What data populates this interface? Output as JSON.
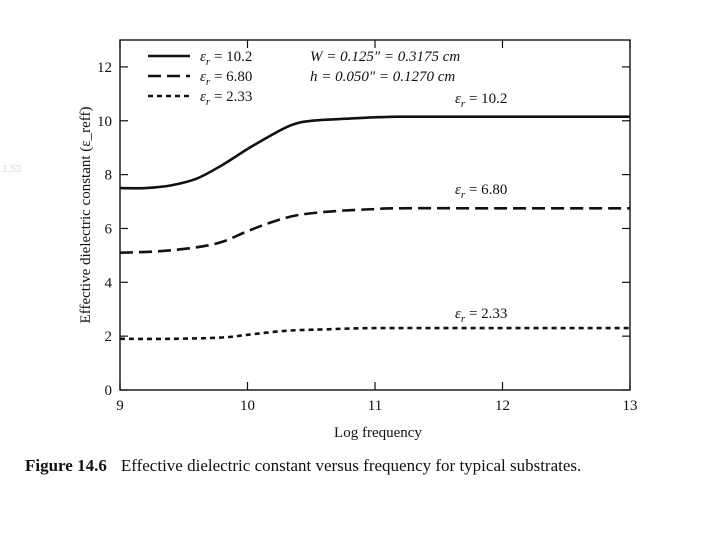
{
  "side_note": "1.53",
  "caption": {
    "label": "Figure 14.6",
    "text": "Effective dielectric constant versus frequency for typical substrates."
  },
  "chart_data": {
    "type": "line",
    "title": "",
    "xlabel": "Log frequency",
    "ylabel": "Effective dielectric constant (ε_reff)",
    "xlim": [
      9,
      13
    ],
    "ylim": [
      0,
      13
    ],
    "xticks": [
      9,
      10,
      11,
      12,
      13
    ],
    "yticks": [
      0,
      2,
      4,
      6,
      8,
      10,
      12
    ],
    "grid": false,
    "legend_position": "top-left",
    "legend_notes": [
      "W = 0.125″ = 0.3175 cm",
      "h = 0.050″ = 0.1270 cm"
    ],
    "series": [
      {
        "name": "ε_r = 10.2",
        "legend_label": "ε r = 10.2",
        "end_label": "ε r = 10.2",
        "style": "solid",
        "x": [
          9,
          9.2,
          9.4,
          9.6,
          9.8,
          10.0,
          10.2,
          10.35,
          10.5,
          10.8,
          11.2,
          12,
          13
        ],
        "y": [
          7.5,
          7.5,
          7.6,
          7.85,
          8.35,
          8.95,
          9.5,
          9.85,
          10.0,
          10.08,
          10.15,
          10.15,
          10.15
        ]
      },
      {
        "name": "ε_r = 6.80",
        "legend_label": "ε r = 6.80",
        "end_label": "ε r = 6.80",
        "style": "dashed",
        "x": [
          9,
          9.3,
          9.6,
          9.8,
          10.0,
          10.2,
          10.4,
          10.7,
          11.0,
          11.2,
          12,
          13
        ],
        "y": [
          5.1,
          5.15,
          5.3,
          5.5,
          5.9,
          6.25,
          6.5,
          6.65,
          6.72,
          6.75,
          6.75,
          6.75
        ]
      },
      {
        "name": "ε_r = 2.33",
        "legend_label": "ε r = 2.33",
        "end_label": "ε r = 2.33",
        "style": "dotted",
        "x": [
          9,
          9.4,
          9.8,
          10.0,
          10.3,
          10.6,
          11.0,
          12,
          13
        ],
        "y": [
          1.9,
          1.9,
          1.95,
          2.05,
          2.2,
          2.25,
          2.3,
          2.3,
          2.3
        ]
      }
    ]
  }
}
